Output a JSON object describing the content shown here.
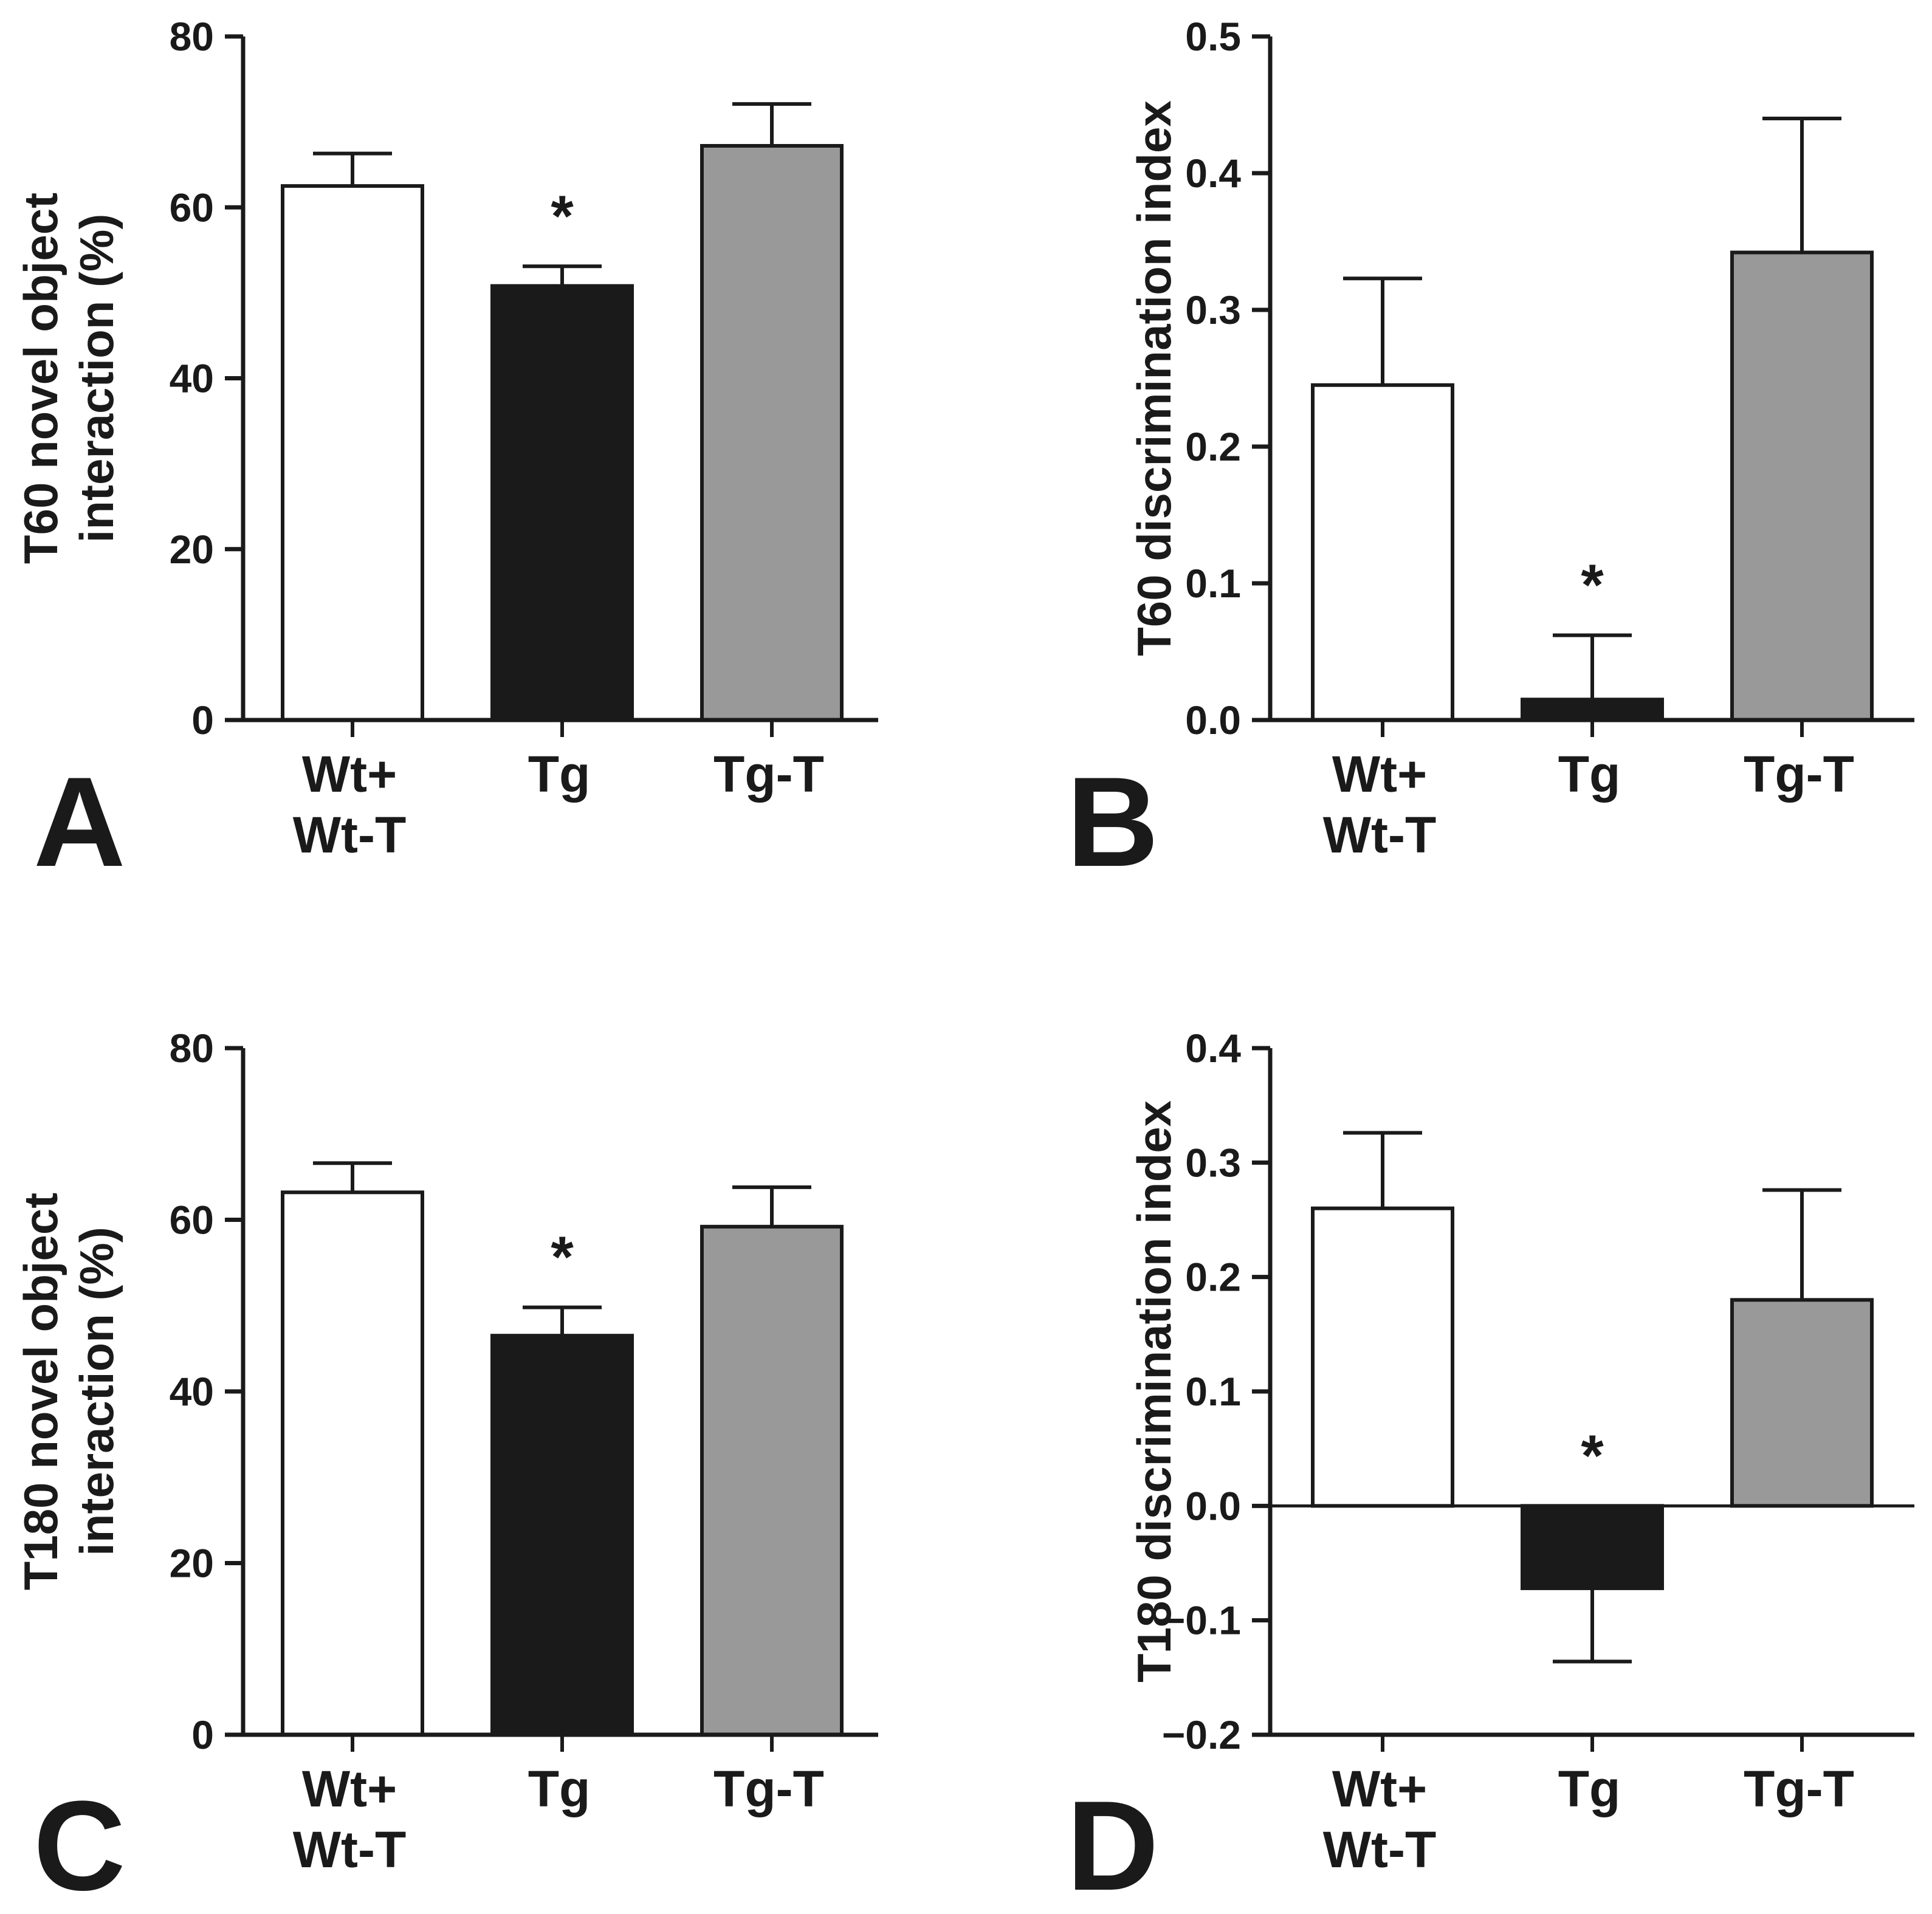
{
  "figure": {
    "background": "#ffffff",
    "ink": "#1a1a1a"
  },
  "bar_colors": [
    "#ffffff",
    "#1a1a1a",
    "#999999"
  ],
  "chart_data": [
    {
      "panel": "A",
      "type": "bar",
      "categories": [
        "Wt+\nWt-T",
        "Tg",
        "Tg-T"
      ],
      "values": [
        62.5,
        50.8,
        67.2
      ],
      "errors": [
        3.8,
        2.3,
        4.9
      ],
      "significance": [
        "",
        "*",
        ""
      ],
      "ylabel": [
        "T60 novel object",
        "interaction (%)"
      ],
      "ylim": [
        0,
        80
      ],
      "yticks": [
        0,
        20,
        40,
        60,
        80
      ],
      "ytick_labels": [
        "0",
        "20",
        "40",
        "60",
        "80"
      ]
    },
    {
      "panel": "B",
      "type": "bar",
      "categories": [
        "Wt+\nWt-T",
        "Tg",
        "Tg-T"
      ],
      "values": [
        0.245,
        0.015,
        0.342
      ],
      "errors": [
        0.078,
        0.047,
        0.098
      ],
      "significance": [
        "",
        "*",
        ""
      ],
      "ylabel": [
        "T60 discrimination index"
      ],
      "ylim": [
        0,
        0.5
      ],
      "yticks": [
        0,
        0.1,
        0.2,
        0.3,
        0.4,
        0.5
      ],
      "ytick_labels": [
        "0.0",
        "0.1",
        "0.2",
        "0.3",
        "0.4",
        "0.5"
      ]
    },
    {
      "panel": "C",
      "type": "bar",
      "categories": [
        "Wt+\nWt-T",
        "Tg",
        "Tg-T"
      ],
      "values": [
        63.2,
        46.5,
        59.2
      ],
      "errors": [
        3.4,
        3.3,
        4.6
      ],
      "significance": [
        "",
        "*",
        ""
      ],
      "ylabel": [
        "T180 novel object",
        "interaction (%)"
      ],
      "ylim": [
        0,
        80
      ],
      "yticks": [
        0,
        20,
        40,
        60,
        80
      ],
      "ytick_labels": [
        "0",
        "20",
        "40",
        "60",
        "80"
      ]
    },
    {
      "panel": "D",
      "type": "bar",
      "categories": [
        "Wt+\nWt-T",
        "Tg",
        "Tg-T"
      ],
      "values": [
        0.26,
        -0.072,
        0.18
      ],
      "errors": [
        0.066,
        0.064,
        0.096
      ],
      "significance": [
        "",
        "*",
        ""
      ],
      "ylabel": [
        "T180 discrimination index"
      ],
      "ylim": [
        -0.2,
        0.4
      ],
      "yticks": [
        -0.2,
        -0.1,
        0,
        0.1,
        0.2,
        0.3,
        0.4
      ],
      "ytick_labels": [
        "−0.2",
        "−0.1",
        "0.0",
        "0.1",
        "0.2",
        "0.3",
        "0.4"
      ],
      "zero_line": true
    }
  ]
}
